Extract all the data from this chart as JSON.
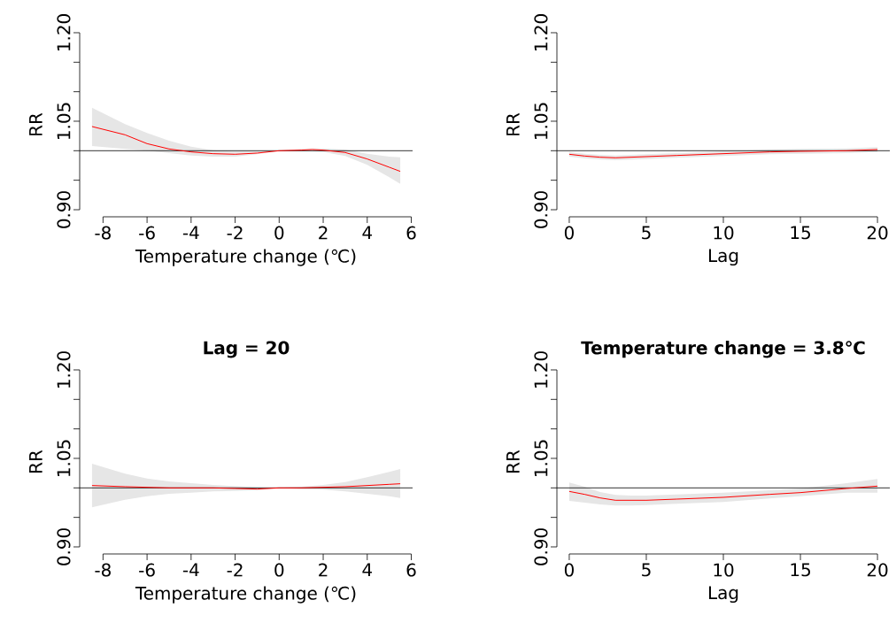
{
  "chart_data": [
    {
      "type": "line",
      "xlabel": "Temperature change (℃)",
      "ylabel": "RR",
      "xlim": [
        -9.06,
        6.06
      ],
      "ylim": [
        0.888,
        1.2
      ],
      "xticks": [
        -8,
        -6,
        -4,
        -2,
        0,
        2,
        4,
        6
      ],
      "yticks": [
        {
          "value": 0.9,
          "label": "0.90"
        },
        {
          "value": 0.95,
          "label": null
        },
        {
          "value": 1.0,
          "label": null
        },
        {
          "value": 1.05,
          "label": "1.05"
        },
        {
          "value": 1.1,
          "label": null
        },
        {
          "value": 1.15,
          "label": null
        },
        {
          "value": 1.2,
          "label": "1.20"
        }
      ],
      "ref_lines": [
        {
          "axis": "y",
          "value": 1.0,
          "color": "#000000"
        }
      ],
      "series": [
        {
          "color": "#ff0000",
          "x": [
            -8.5,
            -7,
            -6,
            -5,
            -4,
            -3,
            -2,
            -1,
            0,
            1,
            1.5,
            2,
            3,
            4,
            5,
            5.5
          ],
          "values": [
            1.041,
            1.027,
            1.012,
            1.003,
            0.998,
            0.995,
            0.994,
            0.996,
            1.0,
            1.001,
            1.002,
            1.001,
            0.997,
            0.986,
            0.972,
            0.965
          ],
          "upper": [
            1.073,
            1.045,
            1.03,
            1.017,
            1.007,
            1.001,
            0.999,
            0.999,
            1.0,
            1.003,
            1.004,
            1.004,
            1.002,
            0.995,
            0.99,
            0.989
          ],
          "lower": [
            1.008,
            1.003,
            1.0,
            0.996,
            0.992,
            0.99,
            0.99,
            0.994,
            1.0,
            0.999,
            0.999,
            0.998,
            0.991,
            0.976,
            0.955,
            0.944
          ]
        }
      ]
    },
    {
      "type": "line",
      "xlabel": "Lag",
      "ylabel": "RR",
      "xlim": [
        -0.8,
        20.8
      ],
      "ylim": [
        0.888,
        1.2
      ],
      "xticks": [
        0,
        5,
        10,
        15,
        20
      ],
      "yticks": [
        {
          "value": 0.9,
          "label": "0.90"
        },
        {
          "value": 0.95,
          "label": null
        },
        {
          "value": 1.0,
          "label": null
        },
        {
          "value": 1.05,
          "label": "1.05"
        },
        {
          "value": 1.1,
          "label": null
        },
        {
          "value": 1.15,
          "label": null
        },
        {
          "value": 1.2,
          "label": "1.20"
        }
      ],
      "ref_lines": [
        {
          "axis": "y",
          "value": 1.0,
          "color": "#000000"
        }
      ],
      "series": [
        {
          "color": "#ff0000",
          "x": [
            0,
            1,
            2,
            3,
            5,
            7,
            10,
            13,
            15,
            18,
            20
          ],
          "values": [
            0.994,
            0.991,
            0.989,
            0.988,
            0.99,
            0.992,
            0.995,
            0.998,
            0.999,
            1.0,
            1.002
          ],
          "upper": [
            0.998,
            0.995,
            0.993,
            0.992,
            0.994,
            0.996,
            0.999,
            1.002,
            1.003,
            1.004,
            1.006
          ],
          "lower": [
            0.99,
            0.987,
            0.985,
            0.984,
            0.986,
            0.988,
            0.991,
            0.994,
            0.995,
            0.996,
            0.998
          ]
        }
      ]
    },
    {
      "type": "line",
      "title": "Lag = 20",
      "xlabel": "Temperature change (℃)",
      "ylabel": "RR",
      "xlim": [
        -9.06,
        6.06
      ],
      "ylim": [
        0.888,
        1.2
      ],
      "xticks": [
        -8,
        -6,
        -4,
        -2,
        0,
        2,
        4,
        6
      ],
      "yticks": [
        {
          "value": 0.9,
          "label": "0.90"
        },
        {
          "value": 0.95,
          "label": null
        },
        {
          "value": 1.0,
          "label": null
        },
        {
          "value": 1.05,
          "label": "1.05"
        },
        {
          "value": 1.1,
          "label": null
        },
        {
          "value": 1.15,
          "label": null
        },
        {
          "value": 1.2,
          "label": "1.20"
        }
      ],
      "ref_lines": [
        {
          "axis": "y",
          "value": 1.0,
          "color": "#000000"
        }
      ],
      "series": [
        {
          "color": "#ff0000",
          "x": [
            -8.5,
            -7,
            -6,
            -5,
            -4,
            -3,
            -2,
            -1,
            0,
            1,
            2,
            3,
            4,
            5,
            5.5
          ],
          "values": [
            1.004,
            1.002,
            1.001,
            1.0,
            1.0,
            1.0,
            0.999,
            0.998,
            1.0,
            1.0,
            1.001,
            1.002,
            1.004,
            1.006,
            1.007
          ],
          "upper": [
            1.041,
            1.024,
            1.016,
            1.011,
            1.008,
            1.005,
            1.003,
            1.001,
            1.0,
            1.002,
            1.005,
            1.01,
            1.018,
            1.027,
            1.032
          ],
          "lower": [
            0.967,
            0.98,
            0.986,
            0.99,
            0.992,
            0.994,
            0.995,
            0.996,
            1.0,
            0.998,
            0.997,
            0.994,
            0.99,
            0.986,
            0.983
          ]
        }
      ]
    },
    {
      "type": "line",
      "title": "Temperature change = 3.8℃",
      "xlabel": "Lag",
      "ylabel": "RR",
      "xlim": [
        -0.8,
        20.8
      ],
      "ylim": [
        0.888,
        1.2
      ],
      "xticks": [
        0,
        5,
        10,
        15,
        20
      ],
      "yticks": [
        {
          "value": 0.9,
          "label": "0.90"
        },
        {
          "value": 0.95,
          "label": null
        },
        {
          "value": 1.0,
          "label": null
        },
        {
          "value": 1.05,
          "label": "1.05"
        },
        {
          "value": 1.1,
          "label": null
        },
        {
          "value": 1.15,
          "label": null
        },
        {
          "value": 1.2,
          "label": "1.20"
        }
      ],
      "ref_lines": [
        {
          "axis": "y",
          "value": 1.0,
          "color": "#000000"
        }
      ],
      "series": [
        {
          "color": "#ff0000",
          "x": [
            0,
            1,
            2,
            3,
            4,
            5,
            7,
            10,
            13,
            15,
            18,
            20
          ],
          "values": [
            0.994,
            0.989,
            0.983,
            0.979,
            0.979,
            0.979,
            0.981,
            0.984,
            0.989,
            0.992,
            0.999,
            1.003
          ],
          "upper": [
            1.009,
            1.002,
            0.993,
            0.988,
            0.987,
            0.987,
            0.989,
            0.992,
            0.996,
            0.999,
            1.008,
            1.015
          ],
          "lower": [
            0.978,
            0.975,
            0.972,
            0.97,
            0.97,
            0.971,
            0.973,
            0.976,
            0.982,
            0.986,
            0.992,
            0.992
          ]
        }
      ]
    }
  ]
}
